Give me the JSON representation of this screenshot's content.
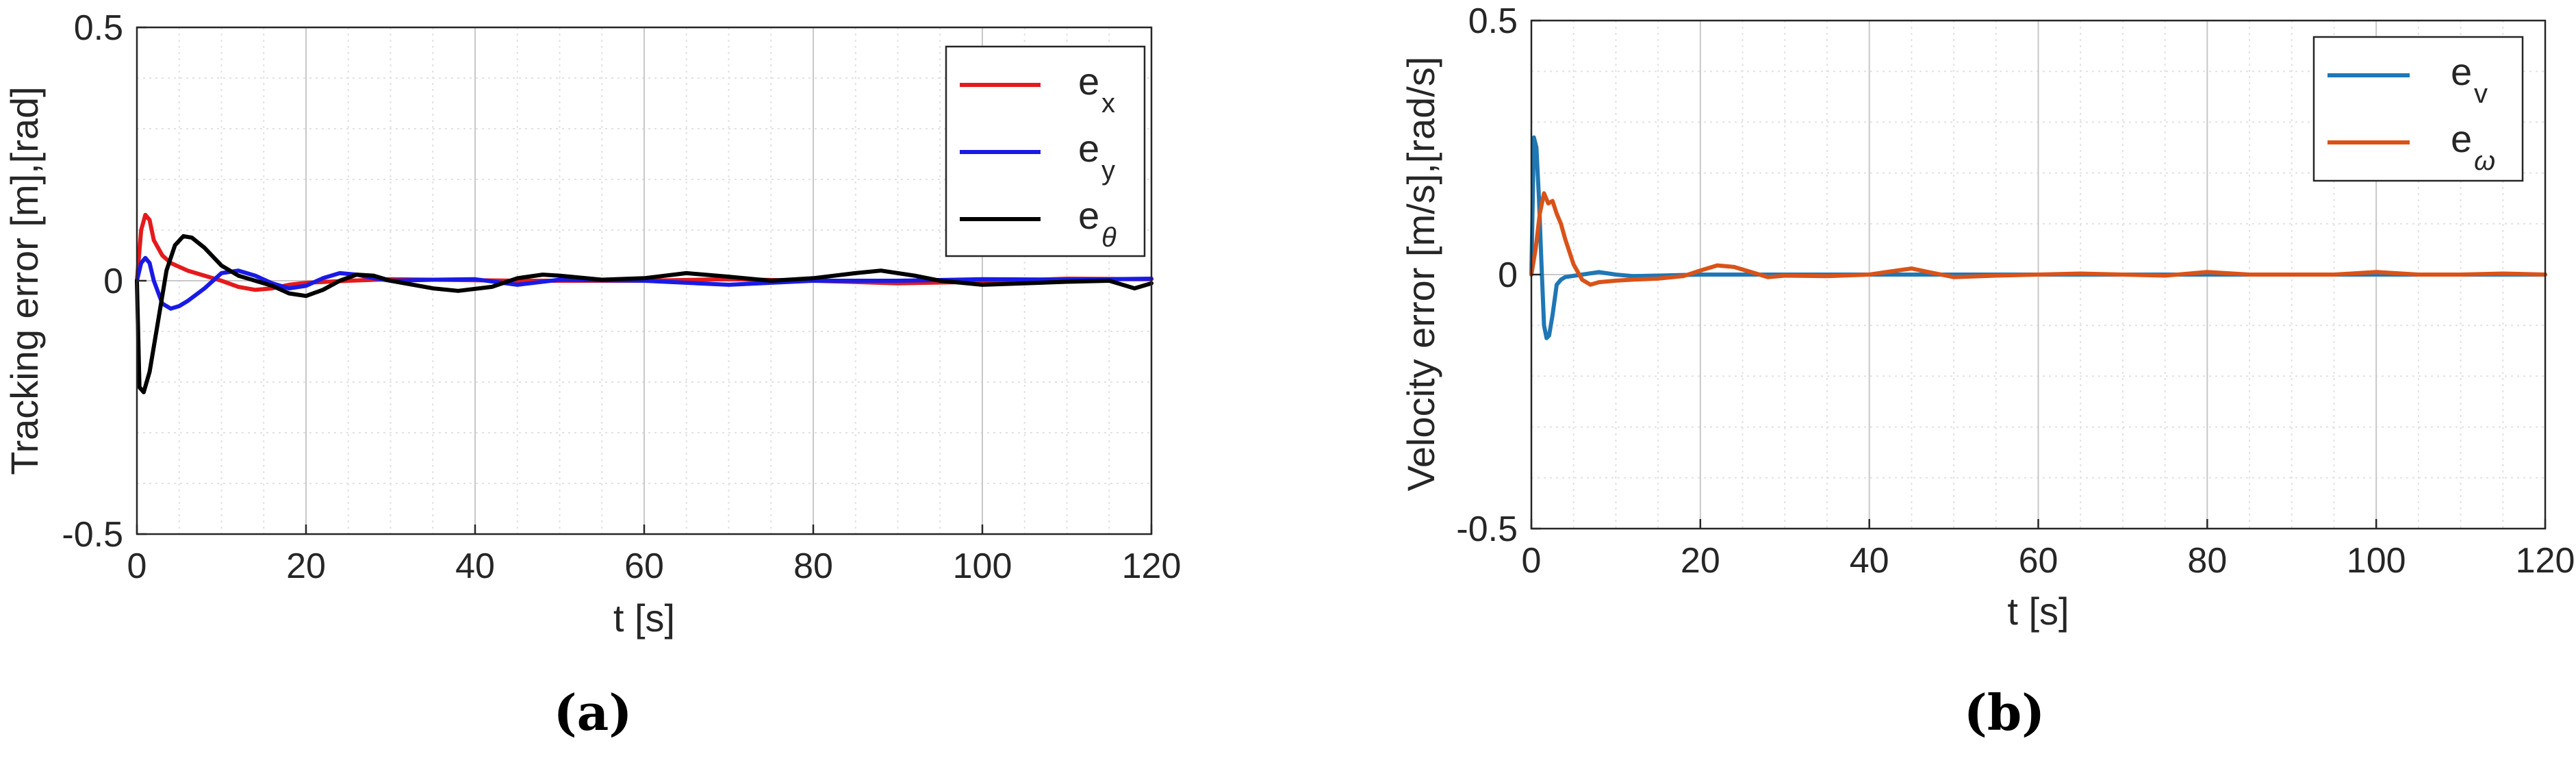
{
  "chart_data": [
    {
      "type": "line",
      "caption": "(a)",
      "xlabel": "t [s]",
      "ylabel": "Tracking error [m],[rad]",
      "xlim": [
        0,
        120
      ],
      "ylim": [
        -0.5,
        0.5
      ],
      "xticks": [
        "0",
        "20",
        "40",
        "60",
        "80",
        "100",
        "120"
      ],
      "yticks": [
        "-0.5",
        "0",
        "0.5"
      ],
      "grid": "on (major + minor)",
      "legend_position": "top-right",
      "series": [
        {
          "name": "e",
          "sub": "x",
          "color": "#e41a1c",
          "x": [
            0,
            0.5,
            1,
            1.5,
            2,
            3,
            4,
            6,
            8,
            10,
            12,
            14,
            16,
            18,
            20,
            25,
            30,
            35,
            40,
            45,
            50,
            60,
            70,
            80,
            90,
            100,
            110,
            120
          ],
          "y": [
            0,
            0.1,
            0.13,
            0.12,
            0.08,
            0.05,
            0.035,
            0.02,
            0.01,
            0.0,
            -0.012,
            -0.018,
            -0.015,
            -0.008,
            -0.004,
            0.0,
            0.003,
            0.002,
            0.001,
            0.0,
            0.0,
            0.0,
            0.003,
            0.0,
            -0.005,
            -0.002,
            0.004,
            0.003
          ]
        },
        {
          "name": "e",
          "sub": "y",
          "color": "#1a1ae6",
          "x": [
            0,
            0.5,
            1,
            1.5,
            2,
            3,
            4,
            5,
            6,
            8,
            10,
            12,
            14,
            16,
            18,
            20,
            22,
            24,
            26,
            28,
            30,
            35,
            40,
            45,
            50,
            60,
            70,
            80,
            90,
            100,
            110,
            120
          ],
          "y": [
            0,
            0.035,
            0.045,
            0.035,
            0.0,
            -0.045,
            -0.055,
            -0.05,
            -0.04,
            -0.015,
            0.015,
            0.02,
            0.01,
            -0.005,
            -0.015,
            -0.01,
            0.005,
            0.015,
            0.012,
            0.005,
            0.0,
            0.002,
            0.003,
            -0.008,
            0.002,
            0.0,
            -0.008,
            0.0,
            0.0,
            0.003,
            0.002,
            0.004
          ]
        },
        {
          "name": "e",
          "sub": "θ",
          "color": "#000000",
          "x": [
            0,
            0.3,
            0.8,
            1.5,
            2.5,
            3.5,
            4.5,
            5.5,
            6.5,
            8,
            10,
            12,
            14,
            16,
            18,
            20,
            22,
            24,
            26,
            28,
            30,
            35,
            38,
            42,
            45,
            48,
            50,
            55,
            60,
            65,
            70,
            75,
            80,
            85,
            88,
            92,
            95,
            100,
            105,
            110,
            115,
            118,
            120
          ],
          "y": [
            0,
            -0.21,
            -0.22,
            -0.18,
            -0.08,
            0.02,
            0.07,
            0.088,
            0.085,
            0.065,
            0.03,
            0.01,
            0.0,
            -0.01,
            -0.025,
            -0.03,
            -0.018,
            0.0,
            0.012,
            0.01,
            0.0,
            -0.015,
            -0.02,
            -0.012,
            0.005,
            0.012,
            0.01,
            0.002,
            0.005,
            0.015,
            0.008,
            0.0,
            0.005,
            0.015,
            0.02,
            0.01,
            0.0,
            -0.008,
            -0.005,
            -0.002,
            0.0,
            -0.015,
            -0.005
          ]
        }
      ]
    },
    {
      "type": "line",
      "caption": "(b)",
      "xlabel": "t [s]",
      "ylabel": "Velocity error [m/s],[rad/s]",
      "xlim": [
        0,
        120
      ],
      "ylim": [
        -0.5,
        0.5
      ],
      "xticks": [
        "0",
        "20",
        "40",
        "60",
        "80",
        "100",
        "120"
      ],
      "yticks": [
        "-0.5",
        "0",
        "0.5"
      ],
      "grid": "on (major + minor)",
      "legend_position": "top-right",
      "series": [
        {
          "name": "e",
          "sub": "v",
          "color": "#1f77b4",
          "x": [
            0,
            0.3,
            0.6,
            0.9,
            1.2,
            1.5,
            1.8,
            2.1,
            2.5,
            3,
            3.5,
            4,
            6,
            8,
            10,
            12,
            15,
            20,
            40,
            60,
            80,
            100,
            120
          ],
          "y": [
            0,
            0.27,
            0.25,
            0.15,
            0.02,
            -0.1,
            -0.125,
            -0.12,
            -0.08,
            -0.02,
            -0.01,
            -0.005,
            0.0,
            0.005,
            0.0,
            -0.003,
            -0.002,
            0.0,
            0.0,
            0.0,
            0.0,
            0.0,
            0.0
          ]
        },
        {
          "name": "e",
          "sub": "ω",
          "color": "#d95319",
          "x": [
            0,
            0.5,
            1,
            1.5,
            2,
            2.5,
            3,
            3.5,
            4,
            5,
            6,
            7,
            8,
            10,
            12,
            15,
            18,
            20,
            22,
            24,
            26,
            28,
            30,
            35,
            40,
            42,
            45,
            47,
            50,
            55,
            60,
            65,
            70,
            75,
            80,
            85,
            90,
            95,
            100,
            105,
            110,
            115,
            120
          ],
          "y": [
            0,
            0.05,
            0.12,
            0.16,
            0.14,
            0.145,
            0.12,
            0.1,
            0.07,
            0.02,
            -0.01,
            -0.02,
            -0.015,
            -0.012,
            -0.01,
            -0.008,
            -0.003,
            0.008,
            0.018,
            0.015,
            0.005,
            -0.005,
            -0.002,
            -0.003,
            0.0,
            0.005,
            0.012,
            0.005,
            -0.005,
            -0.002,
            0.0,
            0.002,
            0.0,
            -0.002,
            0.005,
            0.0,
            0.0,
            0.0,
            0.005,
            0.0,
            0.0,
            0.002,
            0.0
          ]
        }
      ]
    }
  ]
}
